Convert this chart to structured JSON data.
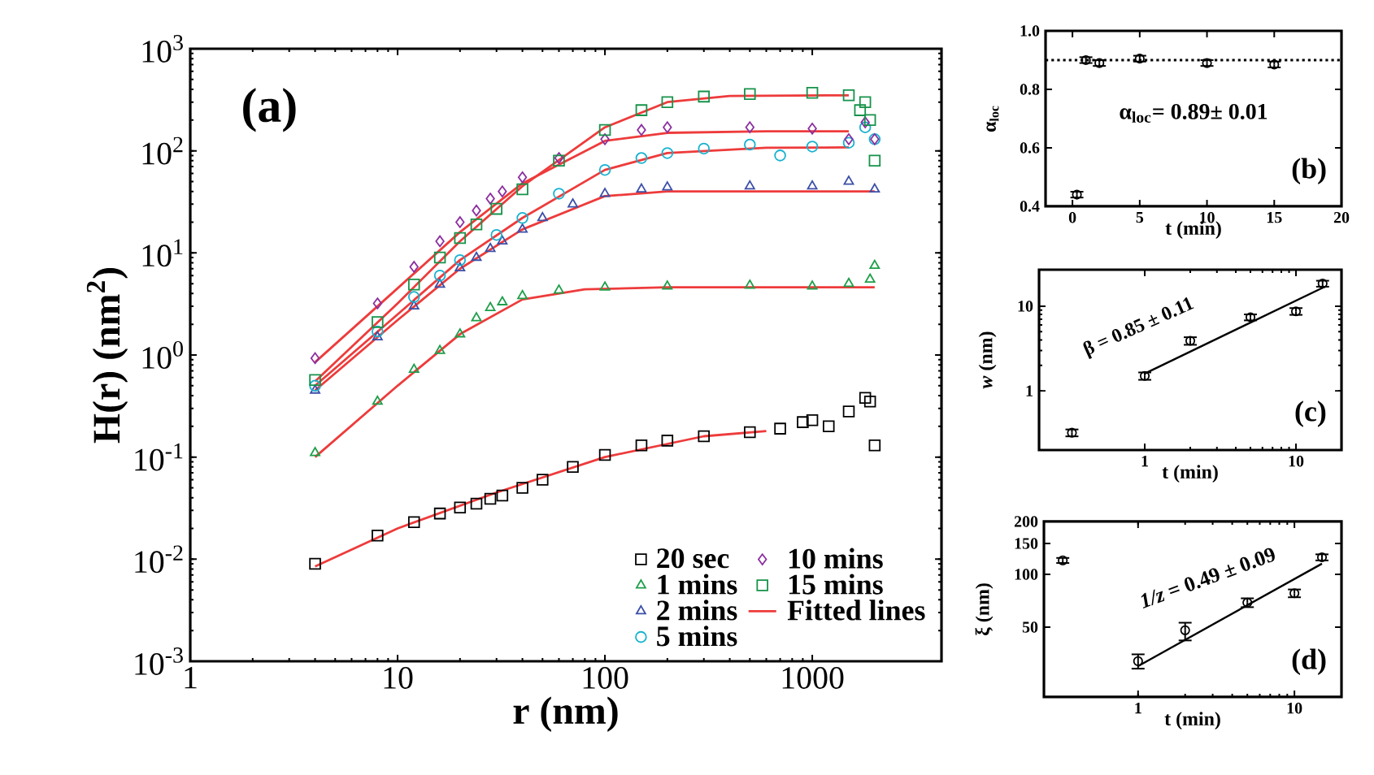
{
  "chart_data": [
    {
      "type": "scatter",
      "xlabel": "r (nm)",
      "ylabel": "H(r) (nm$^{2}$)",
      "log": "xy",
      "xlim": [
        1,
        4200
      ],
      "ylim": [
        0.001,
        1000
      ],
      "xticks": [
        1,
        10,
        100,
        1000
      ],
      "yticks": [
        {
          "value": 0.001,
          "label": "10$^{-3}$"
        },
        {
          "value": 0.01,
          "label": "10$^{-2}$"
        },
        {
          "value": 0.1,
          "label": "10$^{-1}$"
        },
        {
          "value": 1,
          "label": "10$^{0}$"
        },
        {
          "value": 10,
          "label": "10$^{1}$"
        },
        {
          "value": 100,
          "label": "10$^{2}$"
        },
        {
          "value": 1000,
          "label": "10$^{3}$"
        }
      ],
      "legend": "bottom right",
      "annotations": [
        "(a)"
      ],
      "series": [
        {
          "name": "20 sec",
          "color": "#000000",
          "marker": "square",
          "x": [
            4,
            8,
            12,
            16,
            20,
            24,
            28,
            32,
            40,
            50,
            70,
            100,
            150,
            200,
            300,
            500,
            700,
            900,
            1000,
            1200,
            1500,
            1800,
            1900,
            2000
          ],
          "values": [
            0.009,
            0.017,
            0.023,
            0.028,
            0.032,
            0.035,
            0.039,
            0.042,
            0.05,
            0.06,
            0.08,
            0.105,
            0.13,
            0.145,
            0.16,
            0.175,
            0.19,
            0.22,
            0.23,
            0.2,
            0.28,
            0.38,
            0.35,
            0.13
          ]
        },
        {
          "name": "1 mins",
          "color": "#1f9e4a",
          "marker": "triangle",
          "x": [
            4,
            8,
            12,
            16,
            20,
            24,
            28,
            32,
            40,
            60,
            100,
            200,
            500,
            1000,
            1500,
            1900,
            2000
          ],
          "values": [
            0.11,
            0.35,
            0.72,
            1.1,
            1.6,
            2.3,
            2.9,
            3.3,
            3.8,
            4.3,
            4.6,
            4.7,
            4.8,
            4.7,
            5,
            5.5,
            7.5
          ]
        },
        {
          "name": "2 mins",
          "color": "#3b4fa8",
          "marker": "triangle",
          "x": [
            4,
            8,
            12,
            16,
            20,
            24,
            28,
            32,
            40,
            50,
            70,
            100,
            150,
            200,
            500,
            1000,
            1500,
            2000
          ],
          "values": [
            0.45,
            1.5,
            3,
            4.9,
            7.1,
            9,
            11,
            13,
            17,
            22,
            30,
            38,
            42,
            44,
            45,
            45,
            50,
            42
          ]
        },
        {
          "name": "5 mins",
          "color": "#17b2d0",
          "marker": "circle",
          "x": [
            4,
            8,
            12,
            16,
            20,
            30,
            40,
            60,
            100,
            150,
            200,
            300,
            500,
            700,
            1000,
            1500,
            1800,
            2000
          ],
          "values": [
            0.5,
            1.7,
            3.7,
            6,
            8.5,
            15,
            22,
            38,
            65,
            85,
            95,
            105,
            115,
            90,
            110,
            120,
            170,
            130
          ]
        },
        {
          "name": "10  mins",
          "color": "#8b2fa0",
          "marker": "diamond",
          "x": [
            4,
            8,
            12,
            16,
            20,
            24,
            28,
            32,
            40,
            60,
            100,
            150,
            200,
            500,
            1000,
            1500,
            1800,
            2000
          ],
          "values": [
            0.93,
            3.2,
            7.3,
            13,
            20,
            26,
            34,
            40,
            55,
            85,
            130,
            160,
            170,
            170,
            165,
            130,
            190,
            130
          ]
        },
        {
          "name": "15 mins",
          "color": "#16924a",
          "marker": "square",
          "x": [
            4,
            8,
            12,
            16,
            20,
            24,
            30,
            40,
            60,
            100,
            150,
            200,
            300,
            500,
            1000,
            1500,
            1700,
            1800,
            1900,
            2000
          ],
          "values": [
            0.57,
            2.1,
            4.9,
            9,
            14,
            19,
            27,
            42,
            80,
            160,
            250,
            300,
            340,
            360,
            370,
            350,
            250,
            300,
            200,
            80
          ]
        },
        {
          "name": "Fitted lines",
          "type": "line",
          "color": "#ee3b3b",
          "x": [
            4,
            10,
            30,
            100,
            300,
            600
          ],
          "values": [
            0.0085,
            0.02,
            0.045,
            0.1,
            0.16,
            0.18
          ]
        },
        {
          "type": "line",
          "color": "#ee3b3b",
          "x": [
            4,
            10,
            20,
            40,
            80,
            200,
            2000
          ],
          "values": [
            0.1,
            0.5,
            1.6,
            3.5,
            4.4,
            4.6,
            4.6
          ]
        },
        {
          "type": "line",
          "color": "#ee3b3b",
          "x": [
            4,
            10,
            20,
            40,
            100,
            200,
            2000
          ],
          "values": [
            0.45,
            2.2,
            7,
            17,
            36,
            40,
            40
          ]
        },
        {
          "type": "line",
          "color": "#ee3b3b",
          "x": [
            4,
            10,
            20,
            40,
            100,
            200,
            600,
            1500
          ],
          "values": [
            0.5,
            2.5,
            8.5,
            22,
            65,
            95,
            107,
            108
          ]
        },
        {
          "type": "line",
          "color": "#ee3b3b",
          "x": [
            4,
            10,
            20,
            40,
            100,
            200,
            600,
            1500
          ],
          "values": [
            0.85,
            4.5,
            16,
            48,
            125,
            150,
            155,
            155
          ]
        },
        {
          "type": "line",
          "color": "#ee3b3b",
          "x": [
            4,
            10,
            20,
            40,
            100,
            200,
            400,
            1500
          ],
          "values": [
            0.55,
            3.2,
            13,
            45,
            170,
            300,
            345,
            350
          ]
        }
      ]
    },
    {
      "type": "scatter",
      "xlabel": "t (min)",
      "ylabel": "α$_{loc}$",
      "marker": "circle",
      "xlim": [
        -2,
        20
      ],
      "ylim": [
        0.4,
        1.0
      ],
      "xticks": [
        0,
        5,
        10,
        15,
        20
      ],
      "yticks": [
        0.4,
        0.6,
        0.8,
        {
          "value": 1.0,
          "label": "1.0"
        }
      ],
      "ref_lines": [
        {
          "axis": "y",
          "value": 0.9,
          "line_style": "dotted"
        }
      ],
      "annotations": [
        "α$_{loc}$= 0.89± 0.01",
        "(b)"
      ],
      "series": [
        {
          "color": "#000000",
          "x": [
            0.33,
            1,
            2,
            5,
            10,
            15
          ],
          "values": [
            0.44,
            0.9,
            0.89,
            0.905,
            0.89,
            0.885
          ],
          "errors": [
            0.01,
            0.01,
            0.01,
            0.01,
            0.01,
            0.01
          ]
        }
      ]
    },
    {
      "type": "scatter",
      "xlabel": "t (min)",
      "ylabel": "*w* (nm)",
      "marker": "circle",
      "log": "xy",
      "xlim": [
        0.2,
        20
      ],
      "ylim": [
        0.2,
        27
      ],
      "xticks": [
        1,
        10
      ],
      "yticks": [
        1,
        10
      ],
      "annotations": [
        "β = 0.85 ± 0.11",
        "(c)"
      ],
      "series": [
        {
          "color": "#000000",
          "x": [
            0.33,
            1,
            2,
            5,
            10,
            15
          ],
          "values": [
            0.32,
            1.5,
            3.9,
            7.4,
            8.7,
            18.5
          ],
          "errors": [
            0.03,
            0.15,
            0.4,
            0.6,
            0.8,
            1.5
          ]
        },
        {
          "type": "line",
          "marker": "none",
          "color": "#000000",
          "x": [
            1,
            15
          ],
          "values": [
            1.6,
            16.5
          ]
        }
      ]
    },
    {
      "type": "scatter",
      "xlabel": "t (min)",
      "ylabel": "ξ (nm)",
      "marker": "circle",
      "log": "xy",
      "xlim": [
        0.25,
        20
      ],
      "ylim": [
        20,
        200
      ],
      "xticks": [
        1,
        10
      ],
      "yticks": [
        50,
        100,
        150,
        200
      ],
      "annotations": [
        "*1/z* = 0.49 ± 0.09",
        "(d)"
      ],
      "series": [
        {
          "color": "#000000",
          "x": [
            0.33,
            1,
            2,
            5,
            10,
            15
          ],
          "values": [
            120,
            32,
            48,
            69,
            78,
            125
          ],
          "errors": [
            4,
            3,
            [
              42,
              53
            ],
            4,
            4,
            5
          ]
        },
        {
          "type": "line",
          "marker": "none",
          "color": "#000000",
          "x": [
            1,
            15
          ],
          "values": [
            30,
            115
          ]
        }
      ]
    }
  ]
}
